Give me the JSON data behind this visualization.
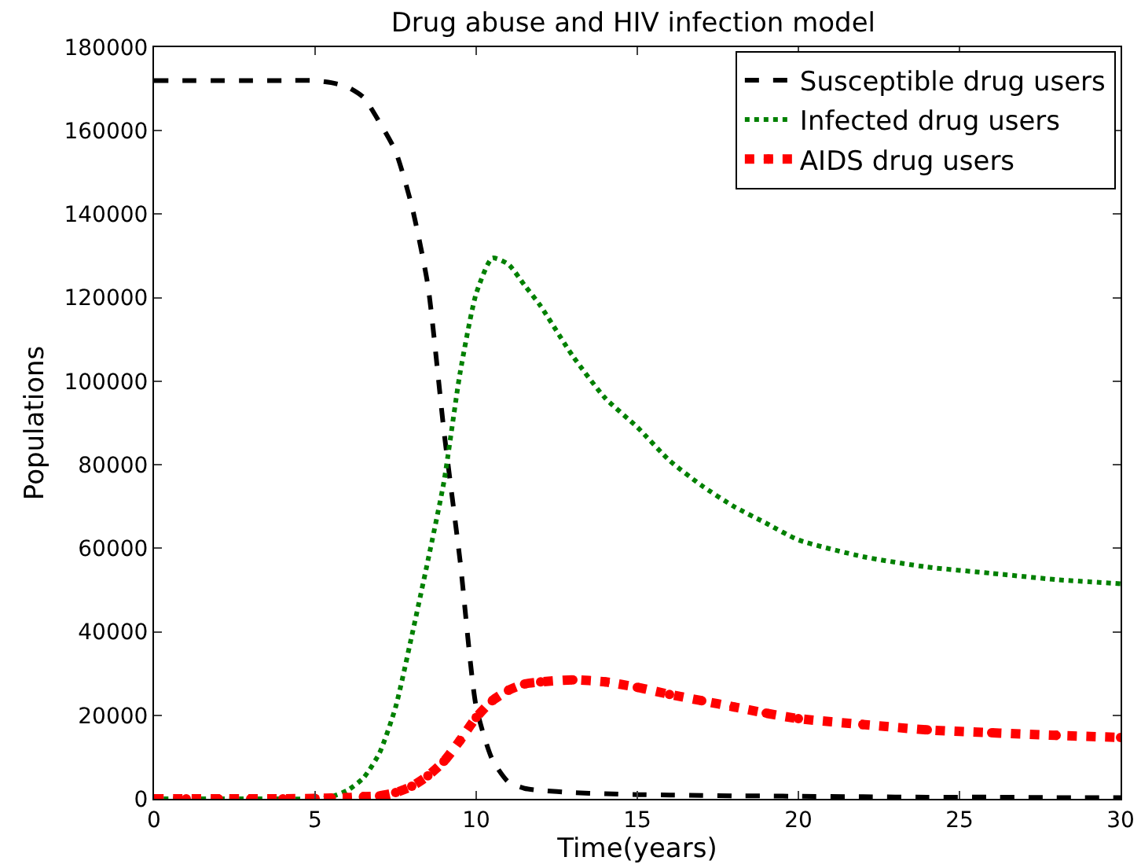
{
  "chart_data": {
    "type": "line",
    "title": "Drug abuse and HIV infection model",
    "xlabel": "Time(years)",
    "ylabel": "Populations",
    "x": [
      0,
      1,
      2,
      3,
      4,
      5,
      5.5,
      6,
      6.5,
      7,
      7.5,
      8,
      8.5,
      9,
      9.5,
      10,
      10.5,
      11,
      11.5,
      12,
      13,
      14,
      15,
      16,
      17,
      18,
      19,
      20,
      22,
      24,
      26,
      28,
      30
    ],
    "series": [
      {
        "name": "Susceptible drug users",
        "color": "#000000",
        "line_style": "dashed",
        "values": [
          172000,
          172000,
          172000,
          172000,
          172000,
          172000,
          171500,
          170500,
          168000,
          162000,
          155000,
          142000,
          123000,
          88000,
          57000,
          22000,
          9400,
          4000,
          2500,
          2000,
          1500,
          1200,
          1000,
          900,
          800,
          700,
          700,
          600,
          500,
          400,
          400,
          300,
          300
        ]
      },
      {
        "name": "Infected drug users",
        "color": "#008000",
        "line_style": "dotted",
        "values": [
          0,
          0,
          0,
          0,
          0,
          0,
          500,
          2000,
          5000,
          11000,
          22000,
          39000,
          57000,
          76000,
          102000,
          121000,
          129500,
          128000,
          123000,
          118000,
          106000,
          96000,
          89000,
          81000,
          75000,
          70000,
          66000,
          62000,
          58000,
          55500,
          54000,
          52500,
          51500
        ]
      },
      {
        "name": "AIDS drug users",
        "color": "#ff0000",
        "marker": "circle",
        "line_style": "dotted",
        "values": [
          0,
          0,
          0,
          0,
          0,
          100,
          200,
          300,
          500,
          700,
          1500,
          3000,
          5500,
          9000,
          14000,
          19500,
          23500,
          26000,
          27500,
          28000,
          28500,
          28000,
          26700,
          25000,
          23500,
          22000,
          20500,
          19200,
          17800,
          16500,
          15800,
          15200,
          14700
        ]
      }
    ],
    "xlim": [
      0,
      30
    ],
    "xticks": [
      0,
      5,
      10,
      15,
      20,
      25,
      30
    ],
    "ylim": [
      0,
      180000
    ],
    "yticks": [
      0,
      20000,
      40000,
      60000,
      80000,
      100000,
      120000,
      140000,
      160000,
      180000
    ],
    "grid": false,
    "legend": "top right"
  }
}
